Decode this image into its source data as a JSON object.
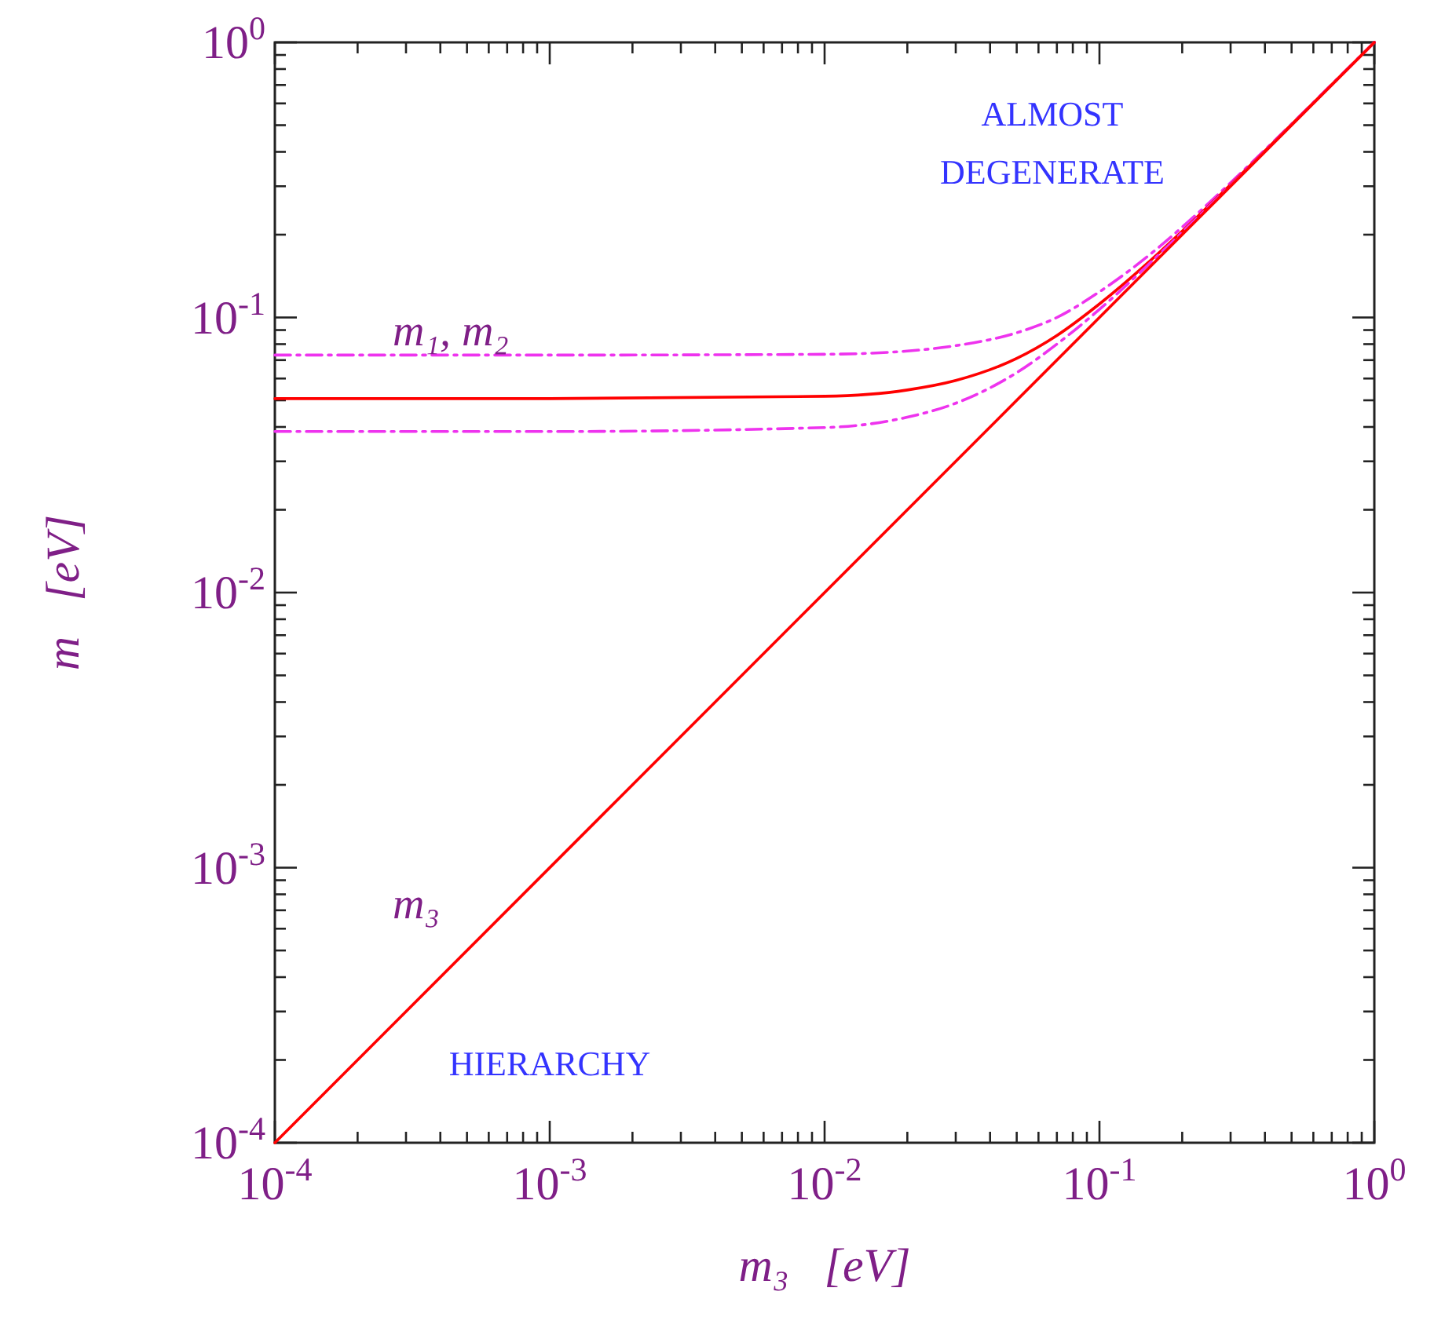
{
  "chart_data": {
    "type": "line",
    "xlabel": "m₃   [eV]",
    "ylabel": "m   [eV]",
    "log": "xy",
    "line_style": "solid",
    "xlim": [
      0.0001,
      1
    ],
    "ylim": [
      0.0001,
      1
    ],
    "xticks": [
      {
        "value": 0.0001,
        "label": "10$^{-4}$"
      },
      {
        "value": 0.0002,
        "label": null
      },
      {
        "value": 0.0003,
        "label": null
      },
      {
        "value": 0.0004,
        "label": null
      },
      {
        "value": 0.0005,
        "label": null
      },
      {
        "value": 0.0006,
        "label": null
      },
      {
        "value": 0.0007,
        "label": null
      },
      {
        "value": 0.0008,
        "label": null
      },
      {
        "value": 0.0009,
        "label": null
      },
      {
        "value": 0.001,
        "label": "10$^{-3}$"
      },
      {
        "value": 0.002,
        "label": null
      },
      {
        "value": 0.003,
        "label": null
      },
      {
        "value": 0.004,
        "label": null
      },
      {
        "value": 0.005,
        "label": null
      },
      {
        "value": 0.006,
        "label": null
      },
      {
        "value": 0.007,
        "label": null
      },
      {
        "value": 0.008,
        "label": null
      },
      {
        "value": 0.009,
        "label": null
      },
      {
        "value": 0.01,
        "label": "10$^{-2}$"
      },
      {
        "value": 0.02,
        "label": null
      },
      {
        "value": 0.03,
        "label": null
      },
      {
        "value": 0.04,
        "label": null
      },
      {
        "value": 0.05,
        "label": null
      },
      {
        "value": 0.06,
        "label": null
      },
      {
        "value": 0.07,
        "label": null
      },
      {
        "value": 0.08,
        "label": null
      },
      {
        "value": 0.09,
        "label": null
      },
      {
        "value": 0.1,
        "label": "10$^{-1}$"
      },
      {
        "value": 0.2,
        "label": null
      },
      {
        "value": 0.3,
        "label": null
      },
      {
        "value": 0.4,
        "label": null
      },
      {
        "value": 0.5,
        "label": null
      },
      {
        "value": 0.6,
        "label": null
      },
      {
        "value": 0.7,
        "label": null
      },
      {
        "value": 0.8,
        "label": null
      },
      {
        "value": 0.9,
        "label": null
      },
      {
        "value": 1,
        "label": "10$^{0}$"
      }
    ],
    "yticks": [
      {
        "value": 0.0001,
        "label": "10$^{-4}$"
      },
      {
        "value": 0.0002,
        "label": null
      },
      {
        "value": 0.0003,
        "label": null
      },
      {
        "value": 0.0004,
        "label": null
      },
      {
        "value": 0.0005,
        "label": null
      },
      {
        "value": 0.0006,
        "label": null
      },
      {
        "value": 0.0007,
        "label": null
      },
      {
        "value": 0.0008,
        "label": null
      },
      {
        "value": 0.0009,
        "label": null
      },
      {
        "value": 0.001,
        "label": "10$^{-3}$"
      },
      {
        "value": 0.002,
        "label": null
      },
      {
        "value": 0.003,
        "label": null
      },
      {
        "value": 0.004,
        "label": null
      },
      {
        "value": 0.005,
        "label": null
      },
      {
        "value": 0.006,
        "label": null
      },
      {
        "value": 0.007,
        "label": null
      },
      {
        "value": 0.008,
        "label": null
      },
      {
        "value": 0.009,
        "label": null
      },
      {
        "value": 0.01,
        "label": "10$^{-2}$"
      },
      {
        "value": 0.02,
        "label": null
      },
      {
        "value": 0.03,
        "label": null
      },
      {
        "value": 0.04,
        "label": null
      },
      {
        "value": 0.05,
        "label": null
      },
      {
        "value": 0.06,
        "label": null
      },
      {
        "value": 0.07,
        "label": null
      },
      {
        "value": 0.08,
        "label": null
      },
      {
        "value": 0.09,
        "label": null
      },
      {
        "value": 0.1,
        "label": "10$^{-1}$"
      },
      {
        "value": 0.2,
        "label": null
      },
      {
        "value": 0.3,
        "label": null
      },
      {
        "value": 0.4,
        "label": null
      },
      {
        "value": 0.5,
        "label": null
      },
      {
        "value": 0.6,
        "label": null
      },
      {
        "value": 0.7,
        "label": null
      },
      {
        "value": 0.8,
        "label": null
      },
      {
        "value": 0.9,
        "label": null
      },
      {
        "value": 1,
        "label": "10$^{0}$"
      }
    ],
    "x": [
      0.0001,
      0.001,
      0.01,
      0.02,
      0.03,
      0.05,
      0.07,
      0.1,
      0.15,
      0.2,
      0.3,
      0.5,
      0.7,
      1
    ],
    "series": [
      {
        "color": "#ee33ee",
        "line_style": "dashed",
        "values": [
          0.073,
          0.073,
          0.0735,
          0.0755,
          0.079,
          0.088,
          0.1,
          0.124,
          0.167,
          0.213,
          0.309,
          0.505,
          0.704,
          1
        ]
      },
      {
        "color": "#ff0000",
        "values": [
          0.0507,
          0.0507,
          0.0517,
          0.0545,
          0.059,
          0.071,
          0.086,
          0.112,
          0.158,
          0.206,
          0.304,
          0.503,
          0.702,
          1
        ]
      },
      {
        "color": "#ee33ee",
        "line_style": "dashed",
        "values": [
          0.0385,
          0.0385,
          0.0398,
          0.0434,
          0.0488,
          0.063,
          0.08,
          0.107,
          0.155,
          0.204,
          0.302,
          0.5015,
          0.701,
          1
        ]
      },
      {
        "color": "#ff0000",
        "x": [
          0.0001,
          1
        ],
        "values": [
          0.0001,
          1
        ]
      }
    ],
    "annotations": [
      "m₁, m₂",
      "m₃",
      "ALMOST\nDEGENERATE",
      "HIERARCHY"
    ]
  }
}
